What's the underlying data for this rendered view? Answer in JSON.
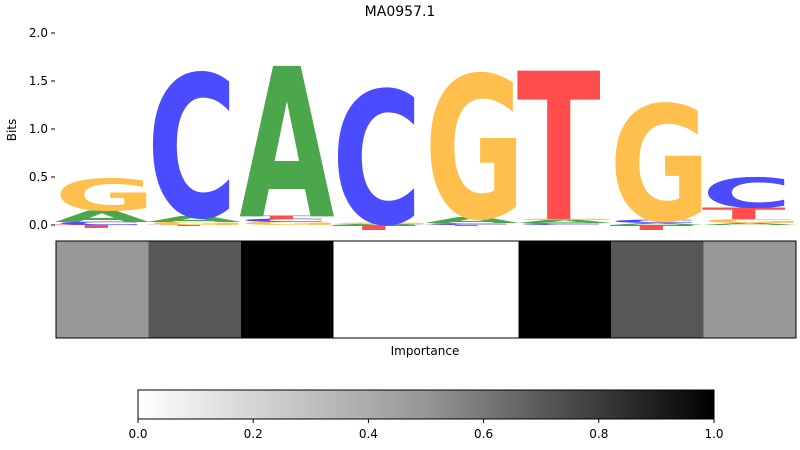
{
  "chart_data": [
    {
      "type": "sequence-logo",
      "title": "MA0957.1",
      "ylabel": "Bits",
      "ylim": [
        0,
        2.0
      ],
      "yticks": [
        0.0,
        0.5,
        1.0,
        1.5,
        2.0
      ],
      "ytick_labels": [
        "0.0",
        "0.5",
        "1.0",
        "1.5",
        "2.0"
      ],
      "letter_colors": {
        "A": "#4ca64c",
        "C": "#4c4cff",
        "G": "#ffbf4c",
        "T": "#ff4c4c"
      },
      "positions": [
        {
          "stack": [
            {
              "letter": "T",
              "bits": -0.03
            },
            {
              "letter": "C",
              "bits": 0.03
            },
            {
              "letter": "A",
              "bits": 0.12
            },
            {
              "letter": "G",
              "bits": 0.33
            }
          ]
        },
        {
          "stack": [
            {
              "letter": "T",
              "bits": -0.01
            },
            {
              "letter": "G",
              "bits": 0.03
            },
            {
              "letter": "A",
              "bits": 0.06
            },
            {
              "letter": "C",
              "bits": 1.49
            }
          ]
        },
        {
          "stack": [
            {
              "letter": "G",
              "bits": 0.03
            },
            {
              "letter": "C",
              "bits": 0.03
            },
            {
              "letter": "T",
              "bits": 0.03
            },
            {
              "letter": "A",
              "bits": 1.57
            }
          ]
        },
        {
          "stack": [
            {
              "letter": "T",
              "bits": -0.05
            },
            {
              "letter": "A",
              "bits": 0.01
            },
            {
              "letter": "G",
              "bits": 0.01
            },
            {
              "letter": "C",
              "bits": 1.39
            }
          ]
        },
        {
          "stack": [
            {
              "letter": "T",
              "bits": -0.01
            },
            {
              "letter": "C",
              "bits": 0.02
            },
            {
              "letter": "A",
              "bits": 0.06
            },
            {
              "letter": "G",
              "bits": 1.49
            }
          ]
        },
        {
          "stack": [
            {
              "letter": "C",
              "bits": 0.02
            },
            {
              "letter": "A",
              "bits": 0.03
            },
            {
              "letter": "G",
              "bits": 0.01
            },
            {
              "letter": "T",
              "bits": 1.55
            }
          ]
        },
        {
          "stack": [
            {
              "letter": "T",
              "bits": -0.05
            },
            {
              "letter": "A",
              "bits": 0.02
            },
            {
              "letter": "C",
              "bits": 0.03
            },
            {
              "letter": "G",
              "bits": 1.21
            }
          ]
        },
        {
          "stack": [
            {
              "letter": "A",
              "bits": 0.02
            },
            {
              "letter": "G",
              "bits": 0.04
            },
            {
              "letter": "T",
              "bits": 0.12
            },
            {
              "letter": "C",
              "bits": 0.31
            }
          ]
        }
      ]
    },
    {
      "type": "heatmap",
      "xlabel": "Importance",
      "values": [
        0.37,
        0.68,
        1.0,
        0.0,
        0.0,
        1.0,
        0.68,
        0.37
      ],
      "colormap": "Greys"
    },
    {
      "type": "colorbar",
      "range": [
        0.0,
        1.0
      ],
      "ticks": [
        0.0,
        0.2,
        0.4,
        0.6,
        0.8,
        1.0
      ],
      "tick_labels": [
        "0.0",
        "0.2",
        "0.4",
        "0.6",
        "0.8",
        "1.0"
      ],
      "colormap": "Greys"
    }
  ]
}
